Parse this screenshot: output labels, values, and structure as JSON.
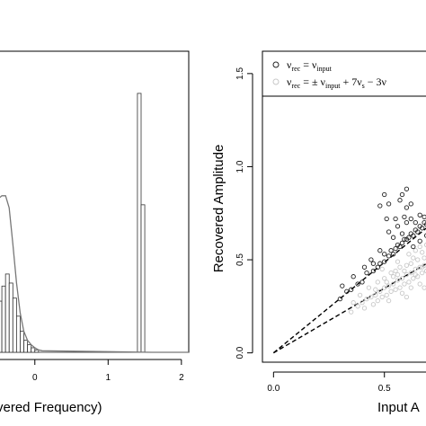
{
  "chart_data": [
    {
      "type": "bar",
      "panel": "left",
      "xlabel": "vered Frequency)",
      "x_ticks": [
        0,
        1,
        2
      ],
      "x_tick_labels": [
        "0",
        "1",
        "2"
      ],
      "xlim": [
        -0.5,
        2.1
      ],
      "ylim": [
        0,
        1
      ],
      "histogram": {
        "bins": [
          {
            "x0": -0.5,
            "x1": -0.45,
            "h": 0.17
          },
          {
            "x0": -0.45,
            "x1": -0.4,
            "h": 0.22
          },
          {
            "x0": -0.4,
            "x1": -0.35,
            "h": 0.26
          },
          {
            "x0": -0.35,
            "x1": -0.3,
            "h": 0.23
          },
          {
            "x0": -0.3,
            "x1": -0.25,
            "h": 0.18
          },
          {
            "x0": -0.25,
            "x1": -0.2,
            "h": 0.12
          },
          {
            "x0": -0.2,
            "x1": -0.15,
            "h": 0.07
          },
          {
            "x0": -0.15,
            "x1": -0.1,
            "h": 0.04
          },
          {
            "x0": -0.1,
            "x1": -0.05,
            "h": 0.025
          },
          {
            "x0": -0.05,
            "x1": 0.0,
            "h": 0.015
          },
          {
            "x0": 0.0,
            "x1": 0.05,
            "h": 0.008
          },
          {
            "x0": 1.4,
            "x1": 1.45,
            "h": 0.86
          },
          {
            "x0": 1.45,
            "x1": 1.5,
            "h": 0.49
          }
        ]
      },
      "density_curve": {
        "x": [
          -0.5,
          -0.45,
          -0.4,
          -0.35,
          -0.3,
          -0.25,
          -0.2,
          -0.15,
          -0.1,
          -0.05,
          0.0,
          0.05,
          0.1,
          1.6,
          2.1
        ],
        "y": [
          0.51,
          0.52,
          0.52,
          0.48,
          0.36,
          0.23,
          0.13,
          0.07,
          0.04,
          0.025,
          0.015,
          0.008,
          0.005,
          0.0,
          0.0
        ]
      }
    },
    {
      "type": "scatter",
      "panel": "right",
      "xlabel": "Input A",
      "ylabel": "Recovered Amplitude",
      "xlim": [
        -0.05,
        0.72
      ],
      "ylim": [
        -0.05,
        1.62
      ],
      "x_ticks": [
        0.0,
        0.5
      ],
      "x_tick_labels": [
        "0.0",
        "0.5"
      ],
      "y_ticks": [
        0.0,
        0.5,
        1.0,
        1.5
      ],
      "y_tick_labels": [
        "0.0",
        "0.5",
        "1.0",
        "1.5"
      ],
      "legend": {
        "placement": "top",
        "entries": [
          {
            "marker": "open-circle-dark",
            "main": "ν",
            "sub": "rec",
            "rest": " = ν",
            "sub2": "input"
          },
          {
            "marker": "open-circle-light",
            "main": "ν",
            "sub": "rec",
            "rest": " =  ± ν",
            "sub2": "input",
            "rest2": " + 7ν",
            "sub3": "s",
            "rest3": " − 3ν"
          }
        ]
      },
      "series": [
        {
          "name": "νrec = νinput",
          "color": "#222222",
          "points": [
            [
              0.3,
              0.29
            ],
            [
              0.35,
              0.34
            ],
            [
              0.4,
              0.38
            ],
            [
              0.42,
              0.43
            ],
            [
              0.45,
              0.44
            ],
            [
              0.48,
              0.48
            ],
            [
              0.5,
              0.49
            ],
            [
              0.52,
              0.52
            ],
            [
              0.54,
              0.53
            ],
            [
              0.55,
              0.56
            ],
            [
              0.57,
              0.57
            ],
            [
              0.58,
              0.59
            ],
            [
              0.6,
              0.61
            ],
            [
              0.61,
              0.62
            ],
            [
              0.62,
              0.64
            ],
            [
              0.63,
              0.63
            ],
            [
              0.64,
              0.66
            ],
            [
              0.65,
              0.65
            ],
            [
              0.66,
              0.68
            ],
            [
              0.67,
              0.67
            ],
            [
              0.68,
              0.7
            ],
            [
              0.69,
              0.69
            ],
            [
              0.7,
              0.71
            ],
            [
              0.71,
              0.7
            ],
            [
              0.45,
              0.48
            ],
            [
              0.47,
              0.46
            ],
            [
              0.5,
              0.53
            ],
            [
              0.53,
              0.55
            ],
            [
              0.56,
              0.58
            ],
            [
              0.59,
              0.61
            ],
            [
              0.6,
              0.7
            ],
            [
              0.62,
              0.72
            ],
            [
              0.64,
              0.7
            ],
            [
              0.66,
              0.74
            ],
            [
              0.68,
              0.73
            ],
            [
              0.7,
              0.76
            ],
            [
              0.56,
              0.68
            ],
            [
              0.58,
              0.64
            ],
            [
              0.54,
              0.62
            ],
            [
              0.63,
              0.57
            ],
            [
              0.66,
              0.6
            ],
            [
              0.69,
              0.63
            ],
            [
              0.6,
              0.78
            ],
            [
              0.55,
              0.72
            ],
            [
              0.52,
              0.65
            ],
            [
              0.48,
              0.55
            ],
            [
              0.44,
              0.5
            ],
            [
              0.41,
              0.46
            ],
            [
              0.38,
              0.37
            ],
            [
              0.36,
              0.41
            ],
            [
              0.33,
              0.33
            ],
            [
              0.31,
              0.36
            ],
            [
              0.5,
              0.85
            ],
            [
              0.52,
              0.8
            ],
            [
              0.58,
              0.85
            ],
            [
              0.6,
              0.88
            ],
            [
              0.48,
              0.79
            ],
            [
              0.57,
              0.82
            ],
            [
              0.51,
              0.72
            ],
            [
              0.62,
              0.8
            ],
            [
              0.59,
              0.73
            ]
          ]
        },
        {
          "name": "νrec =  ± νinput + 7νs − 3ν",
          "color": "#c8c8c8",
          "points": [
            [
              0.35,
              0.22
            ],
            [
              0.38,
              0.25
            ],
            [
              0.4,
              0.27
            ],
            [
              0.42,
              0.29
            ],
            [
              0.44,
              0.3
            ],
            [
              0.46,
              0.31
            ],
            [
              0.48,
              0.33
            ],
            [
              0.5,
              0.35
            ],
            [
              0.52,
              0.36
            ],
            [
              0.54,
              0.37
            ],
            [
              0.56,
              0.39
            ],
            [
              0.58,
              0.4
            ],
            [
              0.6,
              0.42
            ],
            [
              0.62,
              0.43
            ],
            [
              0.64,
              0.45
            ],
            [
              0.66,
              0.46
            ],
            [
              0.68,
              0.47
            ],
            [
              0.7,
              0.49
            ],
            [
              0.45,
              0.26
            ],
            [
              0.47,
              0.28
            ],
            [
              0.49,
              0.3
            ],
            [
              0.51,
              0.31
            ],
            [
              0.53,
              0.33
            ],
            [
              0.55,
              0.34
            ],
            [
              0.57,
              0.35
            ],
            [
              0.59,
              0.37
            ],
            [
              0.61,
              0.38
            ],
            [
              0.63,
              0.4
            ],
            [
              0.65,
              0.41
            ],
            [
              0.67,
              0.43
            ],
            [
              0.69,
              0.44
            ],
            [
              0.71,
              0.46
            ],
            [
              0.5,
              0.4
            ],
            [
              0.55,
              0.44
            ],
            [
              0.6,
              0.47
            ],
            [
              0.65,
              0.5
            ],
            [
              0.7,
              0.53
            ],
            [
              0.52,
              0.28
            ],
            [
              0.58,
              0.32
            ],
            [
              0.62,
              0.35
            ],
            [
              0.66,
              0.37
            ],
            [
              0.7,
              0.4
            ],
            [
              0.43,
              0.35
            ],
            [
              0.47,
              0.38
            ],
            [
              0.53,
              0.43
            ],
            [
              0.57,
              0.46
            ],
            [
              0.63,
              0.51
            ],
            [
              0.67,
              0.54
            ],
            [
              0.39,
              0.31
            ],
            [
              0.41,
              0.24
            ],
            [
              0.36,
              0.27
            ],
            [
              0.6,
              0.3
            ],
            [
              0.68,
              0.35
            ],
            [
              0.64,
              0.55
            ],
            [
              0.69,
              0.58
            ],
            [
              0.71,
              0.52
            ],
            [
              0.56,
              0.49
            ],
            [
              0.61,
              0.53
            ],
            [
              0.66,
              0.57
            ],
            [
              0.49,
              0.45
            ],
            [
              0.54,
              0.41
            ],
            [
              0.59,
              0.44
            ],
            [
              0.62,
              0.48
            ],
            [
              0.68,
              0.51
            ],
            [
              0.71,
              0.55
            ],
            [
              0.46,
              0.34
            ],
            [
              0.51,
              0.38
            ],
            [
              0.56,
              0.42
            ],
            [
              0.64,
              0.42
            ],
            [
              0.67,
              0.46
            ]
          ]
        }
      ],
      "reference_lines": [
        {
          "style": "dashed",
          "x": [
            0.0,
            0.72
          ],
          "y": [
            0.0,
            0.7
          ]
        },
        {
          "style": "dashed",
          "x": [
            0.0,
            0.72
          ],
          "y": [
            0.0,
            0.5
          ]
        }
      ]
    }
  ]
}
